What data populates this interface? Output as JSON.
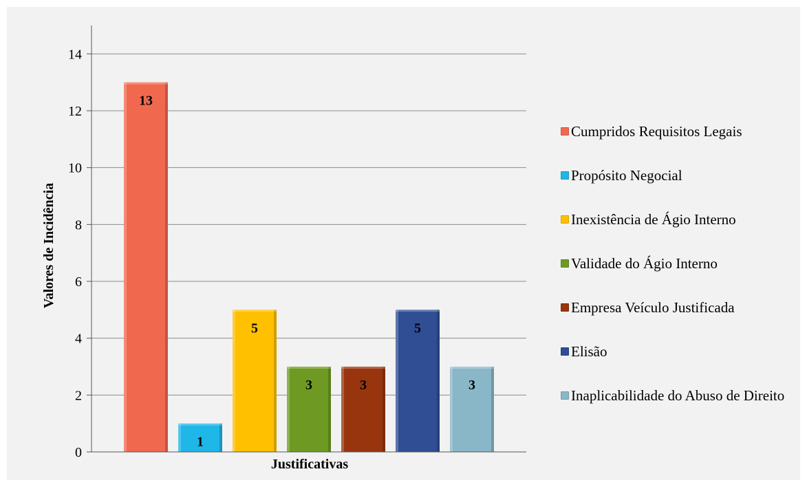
{
  "chart_data": {
    "type": "bar",
    "title": "",
    "xlabel": "Justificativas",
    "ylabel": "Valores de Incidência",
    "ylim": [
      0,
      15
    ],
    "yticks": [
      0,
      2,
      4,
      6,
      8,
      10,
      12,
      14
    ],
    "grid": true,
    "legend_position": "right",
    "series": [
      {
        "name": "Cumpridos Requisitos Legais",
        "value": 13,
        "color": "#f0694f"
      },
      {
        "name": "Propósito Negocial",
        "value": 1,
        "color": "#1fb6e8"
      },
      {
        "name": "Inexistência de Ágio Interno",
        "value": 5,
        "color": "#ffc000"
      },
      {
        "name": "Validade do Ágio Interno",
        "value": 3,
        "color": "#6e9a23"
      },
      {
        "name": "Empresa Veículo Justificada",
        "value": 3,
        "color": "#98350f"
      },
      {
        "name": "Elisão",
        "value": 5,
        "color": "#2f4e93"
      },
      {
        "name": "Inaplicabilidade do Abuso de Direito",
        "value": 3,
        "color": "#8ab7c8"
      }
    ]
  }
}
